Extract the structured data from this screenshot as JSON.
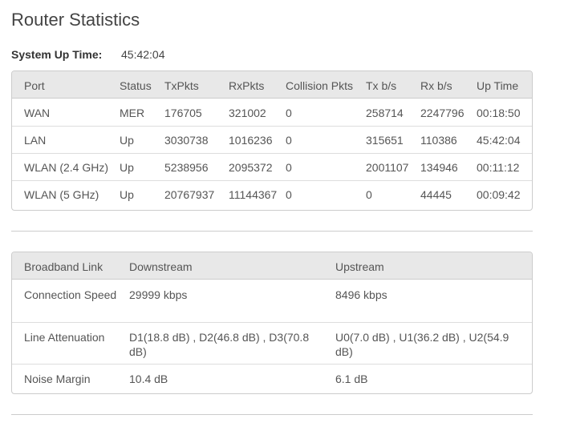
{
  "header": {
    "title": "Router Statistics"
  },
  "uptime": {
    "label": "System Up Time:",
    "value": "45:42:04"
  },
  "port_table": {
    "columns": [
      "Port",
      "Status",
      "TxPkts",
      "RxPkts",
      "Collision Pkts",
      "Tx b/s",
      "Rx b/s",
      "Up Time"
    ],
    "rows": [
      [
        "WAN",
        "MER",
        "176705",
        "321002",
        "0",
        "258714",
        "2247796",
        "00:18:50"
      ],
      [
        "LAN",
        "Up",
        "3030738",
        "1016236",
        "0",
        "315651",
        "110386",
        "45:42:04"
      ],
      [
        "WLAN (2.4 GHz)",
        "Up",
        "5238956",
        "2095372",
        "0",
        "2001107",
        "134946",
        "00:11:12"
      ],
      [
        "WLAN (5 GHz)",
        "Up",
        "20767937",
        "11144367",
        "0",
        "0",
        "44445",
        "00:09:42"
      ]
    ]
  },
  "link_table": {
    "columns": [
      "Broadband Link",
      "Downstream",
      "Upstream"
    ],
    "rows": [
      [
        "Connection Speed",
        "29999 kbps",
        "8496 kbps"
      ],
      [
        "Line Attenuation",
        "D1(18.8 dB) , D2(46.8 dB) , D3(70.8 dB)",
        "U0(7.0 dB) , U1(36.2 dB) , U2(54.9 dB)"
      ],
      [
        "Noise Margin",
        "10.4 dB",
        "6.1 dB"
      ]
    ]
  }
}
